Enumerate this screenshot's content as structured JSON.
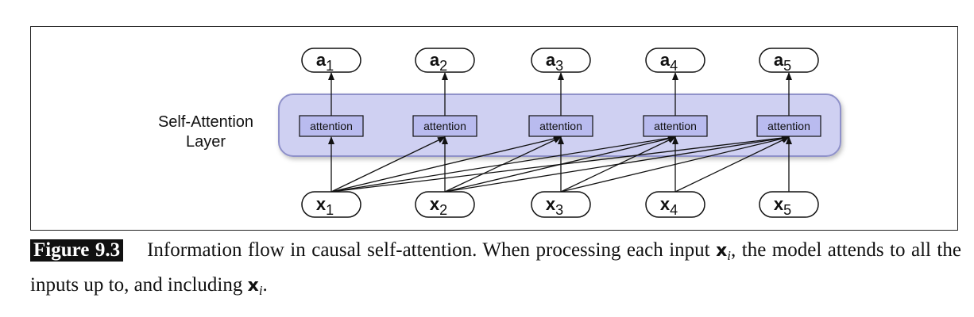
{
  "layer_label": [
    "Self-Attention",
    "Layer"
  ],
  "attention_label": "attention",
  "outputs": [
    {
      "base": "a",
      "sub": "1"
    },
    {
      "base": "a",
      "sub": "2"
    },
    {
      "base": "a",
      "sub": "3"
    },
    {
      "base": "a",
      "sub": "4"
    },
    {
      "base": "a",
      "sub": "5"
    }
  ],
  "inputs": [
    {
      "base": "x",
      "sub": "1"
    },
    {
      "base": "x",
      "sub": "2"
    },
    {
      "base": "x",
      "sub": "3"
    },
    {
      "base": "x",
      "sub": "4"
    },
    {
      "base": "x",
      "sub": "5"
    }
  ],
  "connections": "causal",
  "colors": {
    "layer_fill": "#cfd0f2",
    "layer_stroke": "#8f91c9",
    "attention_fill": "#b9bbef",
    "line": "#111111"
  },
  "caption": {
    "label": "Figure 9.3",
    "text_part1": "Information flow in causal self-attention. When processing each input ",
    "var1": "x",
    "sub1": "i",
    "text_part2": ", the model attends to all the inputs up to, and including ",
    "var2": "x",
    "sub2": "i",
    "text_part3": "."
  }
}
